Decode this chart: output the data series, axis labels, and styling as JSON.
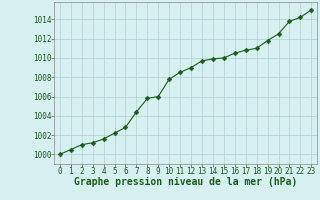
{
  "x": [
    0,
    1,
    2,
    3,
    4,
    5,
    6,
    7,
    8,
    9,
    10,
    11,
    12,
    13,
    14,
    15,
    16,
    17,
    18,
    19,
    20,
    21,
    22,
    23
  ],
  "y": [
    1000.0,
    1000.5,
    1001.0,
    1001.2,
    1001.6,
    1002.2,
    1002.8,
    1004.4,
    1005.8,
    1006.0,
    1007.8,
    1008.5,
    1009.0,
    1009.7,
    1009.9,
    1010.0,
    1010.5,
    1010.8,
    1011.0,
    1011.8,
    1012.5,
    1013.8,
    1014.2,
    1015.0
  ],
  "line_color": "#1a5c1a",
  "marker": "D",
  "marker_size": 2.5,
  "bg_color": "#d6f0f0",
  "grid_color": "#b0d0d0",
  "xlabel": "Graphe pression niveau de la mer (hPa)",
  "xlabel_fontsize": 7,
  "ylabel_ticks": [
    1000,
    1002,
    1004,
    1006,
    1008,
    1010,
    1012,
    1014
  ],
  "xlim": [
    -0.5,
    23.5
  ],
  "ylim": [
    999.0,
    1015.8
  ],
  "xticks": [
    0,
    1,
    2,
    3,
    4,
    5,
    6,
    7,
    8,
    9,
    10,
    11,
    12,
    13,
    14,
    15,
    16,
    17,
    18,
    19,
    20,
    21,
    22,
    23
  ],
  "tick_fontsize": 5.5
}
